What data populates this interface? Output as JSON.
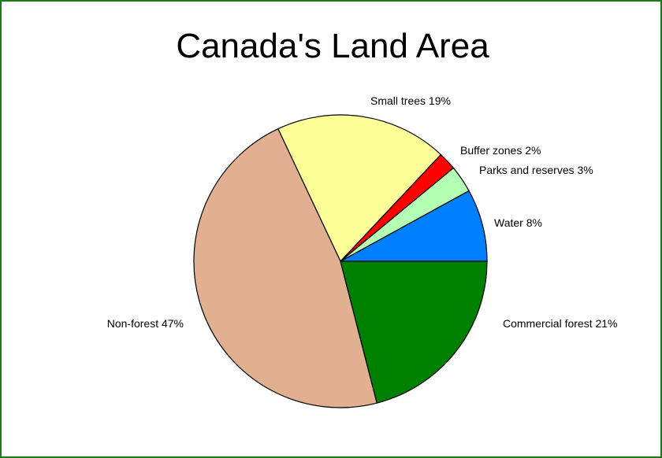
{
  "chart_data": {
    "type": "pie",
    "title": "Canada's Land Area",
    "slices": [
      {
        "label": "Water 8%",
        "value": 8,
        "color": "#0080ff"
      },
      {
        "label": "Parks and reserves 3%",
        "value": 3,
        "color": "#b3ffb3"
      },
      {
        "label": "Buffer zones 2%",
        "value": 2,
        "color": "#ff0000"
      },
      {
        "label": "Small trees 19%",
        "value": 19,
        "color": "#ffff99"
      },
      {
        "label": "Non-forest 47%",
        "value": 47,
        "color": "#e0b090"
      },
      {
        "label": "Commercial forest 21%",
        "value": 21,
        "color": "#008000"
      }
    ],
    "start": "3 o'clock",
    "direction": "counterclockwise",
    "border_color": "#1a7a1a"
  }
}
